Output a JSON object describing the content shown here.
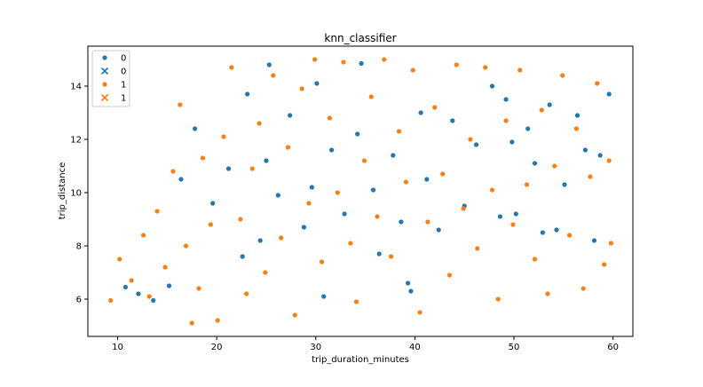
{
  "chart_data": {
    "type": "scatter",
    "title": "knn_classifier",
    "xlabel": "trip_duration_minutes",
    "ylabel": "trip_distance",
    "xlim": [
      7,
      62
    ],
    "ylim": [
      4.6,
      15.5
    ],
    "xticks": [
      10,
      20,
      30,
      40,
      50,
      60
    ],
    "yticks": [
      6,
      8,
      10,
      12,
      14
    ],
    "grid": false,
    "legend_position": "top-left",
    "legend": [
      {
        "label": "0",
        "marker": "dot",
        "color": "#1f77b4"
      },
      {
        "label": "0",
        "marker": "x",
        "color": "#1f77b4"
      },
      {
        "label": "1",
        "marker": "dot",
        "color": "#ff7f0e"
      },
      {
        "label": "1",
        "marker": "x",
        "color": "#ff7f0e"
      }
    ],
    "series": [
      {
        "name": "0",
        "marker": "dot",
        "color": "#1f77b4",
        "points": [
          [
            10.8,
            6.45
          ],
          [
            12.1,
            6.2
          ],
          [
            13.6,
            5.95
          ],
          [
            15.2,
            6.5
          ],
          [
            16.4,
            10.5
          ],
          [
            17.8,
            12.4
          ],
          [
            19.6,
            9.6
          ],
          [
            21.2,
            10.9
          ],
          [
            22.6,
            7.6
          ],
          [
            23.1,
            13.7
          ],
          [
            24.4,
            8.2
          ],
          [
            25.0,
            11.2
          ],
          [
            25.3,
            14.8
          ],
          [
            26.2,
            9.9
          ],
          [
            27.4,
            12.9
          ],
          [
            28.8,
            8.7
          ],
          [
            29.6,
            10.2
          ],
          [
            30.1,
            14.1
          ],
          [
            30.8,
            6.1
          ],
          [
            31.6,
            11.6
          ],
          [
            32.9,
            9.2
          ],
          [
            34.2,
            12.2
          ],
          [
            34.6,
            14.85
          ],
          [
            35.8,
            10.1
          ],
          [
            36.4,
            7.7
          ],
          [
            37.8,
            11.4
          ],
          [
            38.6,
            8.9
          ],
          [
            39.3,
            6.6
          ],
          [
            39.6,
            6.3
          ],
          [
            40.6,
            13.0
          ],
          [
            41.2,
            10.5
          ],
          [
            42.4,
            8.6
          ],
          [
            43.8,
            12.7
          ],
          [
            45.0,
            9.5
          ],
          [
            46.2,
            11.8
          ],
          [
            47.8,
            14.0
          ],
          [
            48.6,
            9.1
          ],
          [
            49.2,
            13.5
          ],
          [
            49.8,
            11.9
          ],
          [
            50.2,
            9.2
          ],
          [
            51.4,
            12.4
          ],
          [
            52.1,
            11.1
          ],
          [
            52.9,
            8.5
          ],
          [
            53.6,
            13.3
          ],
          [
            54.3,
            8.6
          ],
          [
            55.1,
            10.3
          ],
          [
            56.4,
            12.9
          ],
          [
            57.2,
            11.6
          ],
          [
            58.1,
            8.2
          ],
          [
            58.7,
            11.4
          ],
          [
            59.6,
            13.7
          ]
        ]
      },
      {
        "name": "1",
        "marker": "dot",
        "color": "#ff7f0e",
        "points": [
          [
            9.3,
            5.95
          ],
          [
            10.2,
            7.5
          ],
          [
            11.4,
            6.7
          ],
          [
            12.6,
            8.4
          ],
          [
            13.2,
            6.1
          ],
          [
            14.0,
            9.3
          ],
          [
            14.8,
            7.2
          ],
          [
            15.6,
            10.8
          ],
          [
            16.3,
            13.3
          ],
          [
            16.9,
            8.0
          ],
          [
            17.5,
            5.1
          ],
          [
            18.2,
            6.4
          ],
          [
            18.6,
            11.3
          ],
          [
            19.4,
            8.8
          ],
          [
            20.1,
            5.2
          ],
          [
            20.7,
            12.1
          ],
          [
            21.5,
            14.7
          ],
          [
            22.4,
            9.0
          ],
          [
            23.0,
            6.2
          ],
          [
            23.6,
            10.9
          ],
          [
            24.3,
            12.6
          ],
          [
            24.9,
            7.0
          ],
          [
            25.7,
            14.4
          ],
          [
            26.5,
            8.3
          ],
          [
            27.2,
            11.7
          ],
          [
            27.9,
            5.4
          ],
          [
            28.6,
            13.9
          ],
          [
            29.3,
            9.6
          ],
          [
            29.9,
            15.0
          ],
          [
            30.6,
            7.4
          ],
          [
            31.4,
            12.8
          ],
          [
            32.2,
            10.0
          ],
          [
            32.8,
            14.9
          ],
          [
            33.5,
            8.1
          ],
          [
            34.1,
            5.9
          ],
          [
            34.9,
            11.2
          ],
          [
            35.6,
            13.6
          ],
          [
            36.2,
            9.1
          ],
          [
            36.9,
            15.0
          ],
          [
            37.6,
            7.6
          ],
          [
            38.4,
            12.3
          ],
          [
            39.1,
            10.4
          ],
          [
            39.8,
            14.6
          ],
          [
            40.5,
            5.5
          ],
          [
            41.3,
            8.9
          ],
          [
            42.0,
            13.2
          ],
          [
            42.8,
            10.7
          ],
          [
            43.5,
            6.9
          ],
          [
            44.2,
            14.8
          ],
          [
            44.9,
            9.4
          ],
          [
            45.6,
            12.0
          ],
          [
            46.3,
            7.9
          ],
          [
            47.1,
            14.7
          ],
          [
            47.8,
            10.1
          ],
          [
            48.4,
            6.0
          ],
          [
            49.2,
            12.7
          ],
          [
            49.9,
            8.8
          ],
          [
            50.6,
            14.6
          ],
          [
            51.3,
            10.3
          ],
          [
            52.1,
            7.5
          ],
          [
            52.8,
            13.1
          ],
          [
            53.4,
            6.2
          ],
          [
            54.1,
            11.0
          ],
          [
            54.9,
            14.4
          ],
          [
            55.6,
            8.4
          ],
          [
            56.3,
            12.4
          ],
          [
            57.0,
            6.4
          ],
          [
            57.7,
            10.6
          ],
          [
            58.4,
            14.1
          ],
          [
            59.1,
            7.3
          ],
          [
            59.6,
            11.2
          ],
          [
            59.8,
            8.1
          ]
        ]
      }
    ]
  }
}
